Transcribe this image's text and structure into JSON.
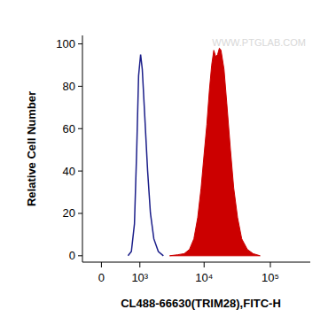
{
  "chart_data": {
    "type": "histogram",
    "x_label": "CL488-66630(TRIM28),FITC-H",
    "y_label": "Relative Cell Number",
    "annotations": [
      "WWW.PTGLAB.COM"
    ],
    "log": "x",
    "xlim": [
      -400,
      400000
    ],
    "xticks": [
      0,
      {
        "value": 1000,
        "label": "10³"
      },
      {
        "value": 10000,
        "label": "10⁴"
      },
      {
        "value": 100000,
        "label": "10⁵"
      }
    ],
    "ylim": [
      -3,
      104
    ],
    "yticks": [
      0,
      20,
      40,
      60,
      80,
      100
    ],
    "grid": false,
    "series": [
      {
        "type": "line",
        "color": "#1c1f8a",
        "x": [
          600,
          700,
          800,
          880,
          950,
          1030,
          1100,
          1200,
          1350,
          1500,
          1700,
          2000,
          2400
        ],
        "values": [
          0,
          2,
          15,
          50,
          85,
          95,
          88,
          68,
          40,
          20,
          8,
          2,
          0
        ]
      },
      {
        "type": "area",
        "color": "#cc0000",
        "x": [
          3000,
          4000,
          5000,
          6000,
          7000,
          8000,
          9000,
          10000,
          11000,
          12000,
          13000,
          14000,
          15000,
          16000,
          17000,
          18000,
          20000,
          22000,
          25000,
          28000,
          32000,
          37000,
          45000,
          55000,
          70000
        ],
        "values": [
          0,
          0.5,
          1,
          3,
          8,
          18,
          32,
          48,
          62,
          78,
          90,
          97,
          94,
          95,
          98,
          97,
          88,
          72,
          50,
          32,
          18,
          8,
          3,
          1,
          0
        ]
      }
    ]
  }
}
